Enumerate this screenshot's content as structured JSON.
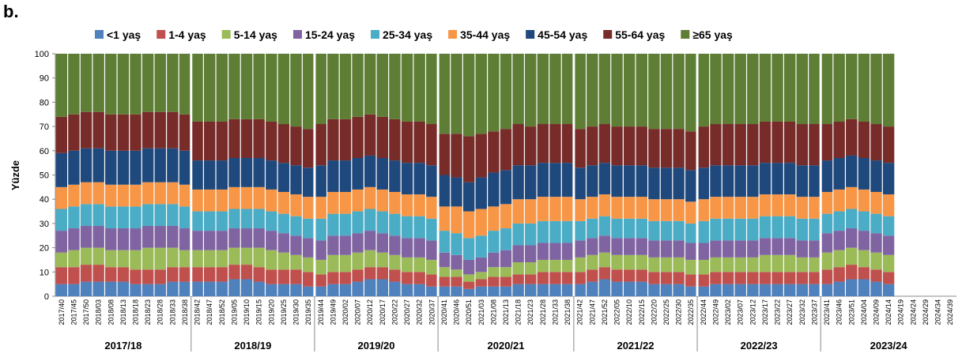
{
  "chart_data": {
    "type": "stacked-bar",
    "panel_label": "b.",
    "y_label": "Yüzde",
    "ylim": [
      0,
      100
    ],
    "yticks": [
      0,
      10,
      20,
      30,
      40,
      50,
      60,
      70,
      80,
      90,
      100
    ],
    "seasons": [
      "2017/18",
      "2018/19",
      "2019/20",
      "2020/21",
      "2021/22",
      "2022/23",
      "2023/24"
    ],
    "categories": [
      "2017/40",
      "2017/45",
      "2017/50",
      "2018/03",
      "2018/08",
      "2018/13",
      "2018/18",
      "2018/23",
      "2018/28",
      "2018/33",
      "2018/38",
      "2018/42",
      "2018/47",
      "2018/52",
      "2019/05",
      "2019/10",
      "2019/15",
      "2019/20",
      "2019/25",
      "2019/30",
      "2019/35",
      "2019/44",
      "2019/49",
      "2020/02",
      "2020/07",
      "2020/12",
      "2020/17",
      "2020/22",
      "2020/27",
      "2020/32",
      "2020/37",
      "2020/41",
      "2020/46",
      "2020/51",
      "2021/03",
      "2021/08",
      "2021/13",
      "2021/18",
      "2021/23",
      "2021/28",
      "2021/33",
      "2021/38",
      "2021/42",
      "2021/47",
      "2021/52",
      "2022/05",
      "2022/10",
      "2022/15",
      "2022/20",
      "2022/25",
      "2022/30",
      "2022/35",
      "2022/44",
      "2022/49",
      "2023/02",
      "2023/07",
      "2023/12",
      "2023/17",
      "2023/22",
      "2023/27",
      "2023/32",
      "2023/37",
      "2023/41",
      "2023/46",
      "2023/51",
      "2024/04",
      "2024/09",
      "2024/14",
      "2024/19",
      "2024/24",
      "2024/29",
      "2024/34",
      "2024/39"
    ],
    "series": [
      {
        "name": "<1 yaş",
        "color": "#4f81bd",
        "values": [
          5,
          5,
          6,
          6,
          6,
          6,
          5,
          5,
          5,
          6,
          6,
          6,
          6,
          6,
          7,
          7,
          6,
          5,
          5,
          5,
          4,
          4,
          5,
          5,
          6,
          7,
          7,
          6,
          5,
          5,
          4,
          4,
          4,
          3,
          4,
          4,
          4,
          5,
          5,
          5,
          5,
          5,
          5,
          6,
          7,
          6,
          6,
          6,
          5,
          5,
          5,
          4,
          4,
          5,
          5,
          5,
          5,
          5,
          5,
          5,
          5,
          5,
          5,
          6,
          7,
          7,
          6,
          5,
          null,
          null,
          null,
          null,
          null
        ]
      },
      {
        "name": "1-4 yaş",
        "color": "#c0504d",
        "values": [
          7,
          7,
          7,
          7,
          6,
          6,
          6,
          6,
          6,
          6,
          6,
          6,
          6,
          6,
          6,
          6,
          6,
          6,
          6,
          6,
          6,
          5,
          5,
          5,
          5,
          5,
          5,
          5,
          5,
          5,
          5,
          4,
          4,
          3,
          3,
          4,
          4,
          4,
          4,
          5,
          5,
          5,
          5,
          5,
          5,
          5,
          5,
          5,
          5,
          5,
          5,
          5,
          5,
          5,
          5,
          5,
          5,
          5,
          5,
          5,
          5,
          5,
          6,
          6,
          6,
          5,
          5,
          5,
          null,
          null,
          null,
          null,
          null
        ]
      },
      {
        "name": "5-14 yaş",
        "color": "#9bbb59",
        "values": [
          6,
          7,
          7,
          7,
          7,
          7,
          8,
          9,
          9,
          8,
          7,
          7,
          7,
          7,
          7,
          7,
          8,
          8,
          7,
          6,
          6,
          6,
          7,
          7,
          7,
          7,
          6,
          6,
          6,
          6,
          6,
          4,
          3,
          3,
          3,
          4,
          4,
          5,
          5,
          5,
          5,
          5,
          6,
          6,
          6,
          6,
          6,
          6,
          6,
          6,
          6,
          6,
          6,
          6,
          6,
          6,
          6,
          7,
          7,
          7,
          6,
          6,
          7,
          7,
          7,
          7,
          7,
          7,
          null,
          null,
          null,
          null,
          null
        ]
      },
      {
        "name": "15-24 yaş",
        "color": "#8064a2",
        "values": [
          9,
          9,
          9,
          9,
          9,
          9,
          9,
          9,
          9,
          9,
          9,
          8,
          8,
          8,
          8,
          8,
          8,
          8,
          8,
          8,
          8,
          8,
          8,
          8,
          8,
          8,
          8,
          8,
          8,
          8,
          8,
          6,
          6,
          6,
          6,
          6,
          7,
          7,
          7,
          7,
          7,
          7,
          7,
          7,
          7,
          7,
          7,
          7,
          7,
          7,
          7,
          7,
          7,
          7,
          7,
          7,
          7,
          7,
          7,
          7,
          7,
          7,
          8,
          8,
          8,
          8,
          8,
          8,
          null,
          null,
          null,
          null,
          null
        ]
      },
      {
        "name": "25-34 yaş",
        "color": "#4bacc6",
        "values": [
          9,
          9,
          9,
          9,
          9,
          9,
          9,
          9,
          9,
          9,
          9,
          8,
          8,
          8,
          8,
          8,
          8,
          8,
          8,
          8,
          8,
          9,
          9,
          9,
          9,
          9,
          9,
          9,
          9,
          9,
          9,
          9,
          9,
          9,
          9,
          9,
          9,
          9,
          9,
          9,
          9,
          9,
          8,
          8,
          8,
          8,
          8,
          8,
          8,
          8,
          8,
          8,
          9,
          9,
          9,
          9,
          9,
          9,
          9,
          9,
          9,
          9,
          8,
          8,
          8,
          8,
          8,
          8,
          null,
          null,
          null,
          null,
          null
        ]
      },
      {
        "name": "35-44 yaş",
        "color": "#f79646",
        "values": [
          9,
          9,
          9,
          9,
          9,
          9,
          9,
          9,
          9,
          9,
          9,
          9,
          9,
          9,
          9,
          9,
          9,
          9,
          9,
          9,
          9,
          9,
          9,
          9,
          9,
          9,
          9,
          9,
          9,
          9,
          9,
          10,
          11,
          11,
          11,
          10,
          10,
          10,
          10,
          10,
          10,
          10,
          9,
          9,
          9,
          9,
          9,
          9,
          9,
          9,
          9,
          9,
          9,
          9,
          9,
          9,
          9,
          9,
          9,
          9,
          9,
          9,
          9,
          9,
          9,
          9,
          9,
          9,
          null,
          null,
          null,
          null,
          null
        ]
      },
      {
        "name": "45-54  yaş",
        "color": "#1f497d",
        "values": [
          14,
          14,
          14,
          14,
          14,
          14,
          14,
          14,
          14,
          14,
          14,
          12,
          12,
          12,
          12,
          12,
          12,
          12,
          12,
          12,
          12,
          13,
          13,
          13,
          13,
          13,
          13,
          13,
          13,
          13,
          13,
          13,
          12,
          12,
          13,
          14,
          14,
          14,
          14,
          14,
          14,
          14,
          13,
          13,
          13,
          13,
          13,
          13,
          13,
          13,
          13,
          13,
          13,
          13,
          13,
          13,
          13,
          13,
          13,
          13,
          13,
          13,
          13,
          13,
          13,
          13,
          13,
          13,
          null,
          null,
          null,
          null,
          null
        ]
      },
      {
        "name": "55-64 yaş",
        "color": "#772c2a",
        "values": [
          15,
          15,
          15,
          15,
          15,
          15,
          15,
          15,
          15,
          15,
          15,
          16,
          16,
          16,
          16,
          16,
          16,
          16,
          16,
          16,
          16,
          17,
          17,
          17,
          17,
          17,
          17,
          17,
          17,
          17,
          17,
          17,
          18,
          19,
          18,
          17,
          17,
          17,
          16,
          16,
          16,
          16,
          16,
          16,
          16,
          16,
          16,
          16,
          16,
          16,
          16,
          16,
          17,
          17,
          17,
          17,
          17,
          17,
          17,
          17,
          17,
          17,
          15,
          15,
          15,
          15,
          15,
          15,
          null,
          null,
          null,
          null,
          null
        ]
      },
      {
        "name": "≥65 yaş",
        "color": "#5e7d35",
        "values": [
          26,
          25,
          24,
          24,
          25,
          25,
          25,
          24,
          24,
          24,
          25,
          28,
          28,
          28,
          27,
          27,
          27,
          28,
          29,
          30,
          31,
          29,
          27,
          27,
          26,
          25,
          26,
          27,
          28,
          28,
          29,
          33,
          33,
          34,
          33,
          32,
          31,
          29,
          30,
          29,
          29,
          29,
          31,
          30,
          29,
          30,
          30,
          30,
          31,
          31,
          31,
          32,
          30,
          29,
          29,
          29,
          29,
          28,
          28,
          28,
          29,
          29,
          29,
          28,
          27,
          28,
          29,
          30,
          null,
          null,
          null,
          null,
          null
        ]
      }
    ]
  }
}
